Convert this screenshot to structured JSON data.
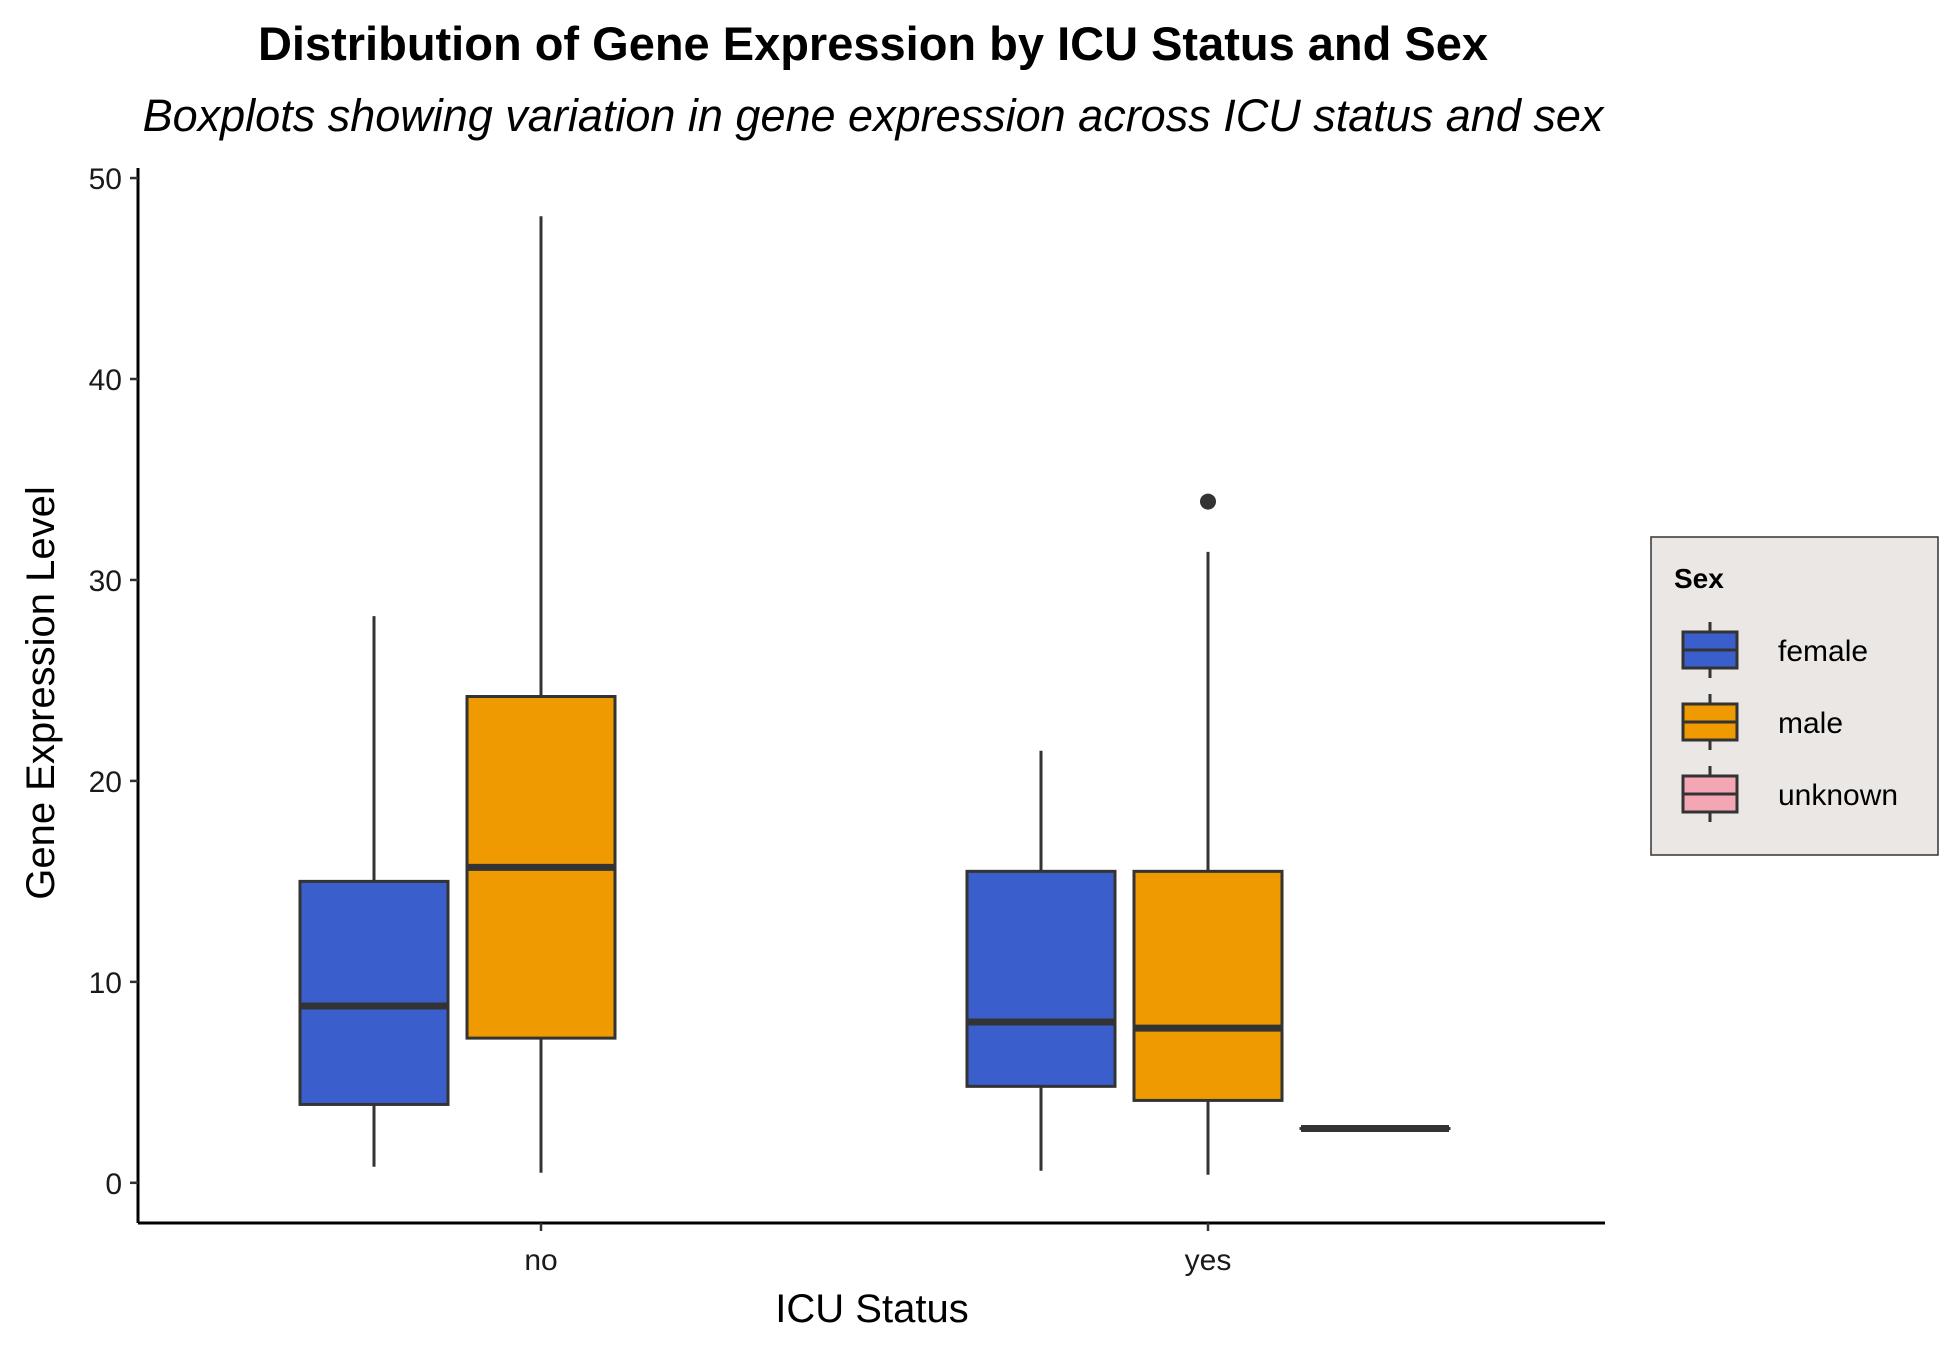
{
  "chart_data": {
    "type": "boxplot",
    "title": "Distribution of Gene Expression by ICU Status and Sex",
    "subtitle": "Boxplots showing variation in gene expression across ICU status and sex",
    "xlabel": "ICU Status",
    "ylabel": "Gene Expression Level",
    "categories": [
      "no",
      "yes"
    ],
    "ylim": [
      -2,
      50.5
    ],
    "yticks": [
      "0",
      "10",
      "20",
      "30",
      "40",
      "50"
    ],
    "legend": {
      "title": "Sex",
      "position": "right",
      "entries": [
        "female",
        "male",
        "unknown"
      ]
    },
    "colors": {
      "female": "#3a5fcd",
      "male": "#ee9a00",
      "unknown": "#f4a6b5",
      "outline": "#333333",
      "legend_bg": "#ebe7e5"
    },
    "series": [
      {
        "name": "female",
        "boxes": [
          {
            "category": "no",
            "min": 0.8,
            "q1": 3.9,
            "median": 8.8,
            "q3": 15.0,
            "max": 28.2,
            "outliers": []
          },
          {
            "category": "yes",
            "min": 0.6,
            "q1": 4.8,
            "median": 8.0,
            "q3": 15.5,
            "max": 21.5,
            "outliers": []
          }
        ]
      },
      {
        "name": "male",
        "boxes": [
          {
            "category": "no",
            "min": 0.5,
            "q1": 7.2,
            "median": 15.7,
            "q3": 24.2,
            "max": 48.1,
            "outliers": []
          },
          {
            "category": "yes",
            "min": 0.4,
            "q1": 4.1,
            "median": 7.7,
            "q3": 15.5,
            "max": 31.4,
            "outliers": [
              33.9
            ]
          }
        ]
      },
      {
        "name": "unknown",
        "boxes": [
          {
            "category": "yes",
            "min": 2.7,
            "q1": 2.7,
            "median": 2.7,
            "q3": 2.7,
            "max": 2.7,
            "outliers": []
          }
        ]
      }
    ]
  }
}
